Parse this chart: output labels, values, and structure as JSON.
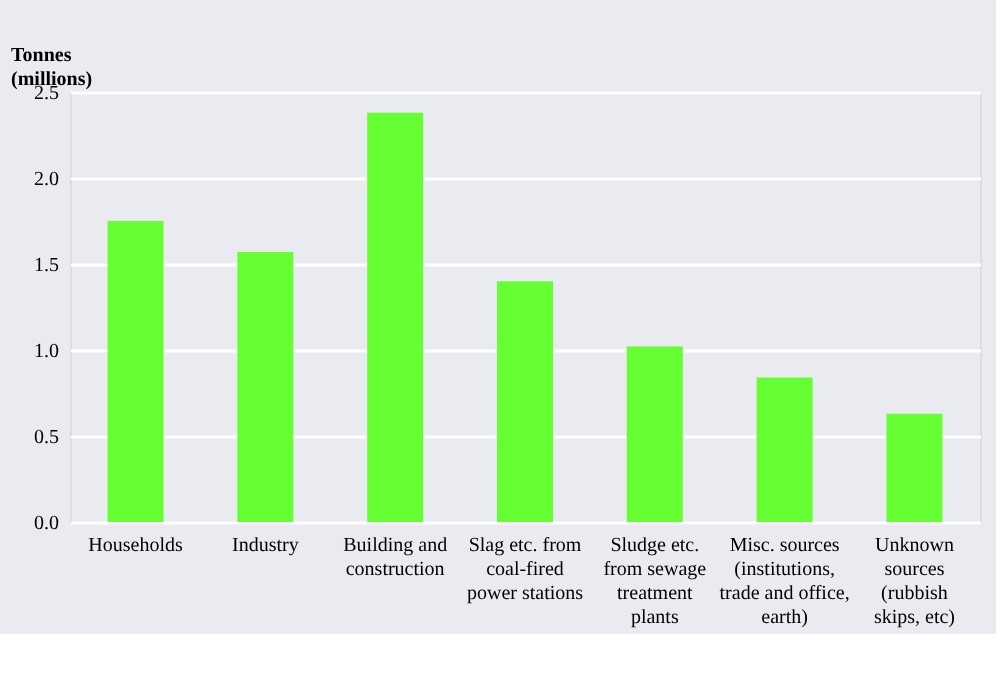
{
  "chart_data": {
    "type": "bar",
    "ylabel": "Tonnes\n(millions)",
    "categories": [
      "Households",
      "Industry",
      "Building and\nconstruction",
      "Slag etc. from\ncoal-fired\npower stations",
      "Sludge etc.\nfrom sewage\ntreatment\nplants",
      "Misc. sources\n(institutions,\ntrade and office,\nearth)",
      "Unknown\nsources\n(rubbish\nskips, etc)"
    ],
    "values": [
      1.75,
      1.57,
      2.38,
      1.4,
      1.02,
      0.84,
      0.63
    ],
    "color": "#66ff33",
    "ylim": [
      0,
      2.5
    ],
    "yticks": [
      {
        "value": 0,
        "label": "0.0"
      },
      {
        "value": 0.5,
        "label": "0.5"
      },
      {
        "value": 1,
        "label": "1.0"
      },
      {
        "value": 1.5,
        "label": "1.5"
      },
      {
        "value": 2,
        "label": "2.0"
      },
      {
        "value": 2.5,
        "label": "2.5"
      }
    ],
    "grid": "y"
  }
}
